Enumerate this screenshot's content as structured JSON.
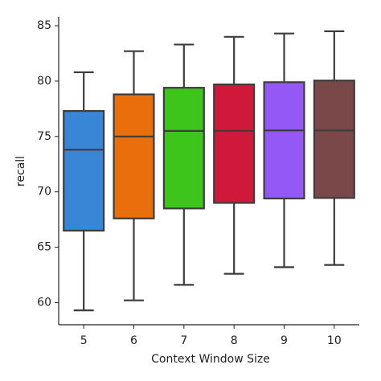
{
  "chart_data": {
    "type": "box",
    "x_label": "Context Window Size",
    "y_label": "recall",
    "categories": [
      "5",
      "6",
      "7",
      "8",
      "9",
      "10"
    ],
    "boxes": [
      {
        "whislo": 59.3,
        "q1": 66.5,
        "med": 73.8,
        "q3": 77.3,
        "whishi": 80.8,
        "color": "#3a86d6"
      },
      {
        "whislo": 60.2,
        "q1": 67.6,
        "med": 75.0,
        "q3": 78.8,
        "whishi": 82.7,
        "color": "#e96f0c"
      },
      {
        "whislo": 61.6,
        "q1": 68.5,
        "med": 75.5,
        "q3": 79.4,
        "whishi": 83.3,
        "color": "#3ec51c"
      },
      {
        "whislo": 62.6,
        "q1": 69.0,
        "med": 75.5,
        "q3": 79.7,
        "whishi": 84.0,
        "color": "#d0183a"
      },
      {
        "whislo": 63.2,
        "q1": 69.4,
        "med": 75.55,
        "q3": 79.9,
        "whishi": 84.3,
        "color": "#9358f6"
      },
      {
        "whislo": 63.4,
        "q1": 69.45,
        "med": 75.55,
        "q3": 80.05,
        "whishi": 84.5,
        "color": "#7a4848"
      }
    ],
    "ylim": [
      58,
      85.8
    ],
    "yticks": [
      60,
      65,
      70,
      75,
      80,
      85
    ]
  }
}
